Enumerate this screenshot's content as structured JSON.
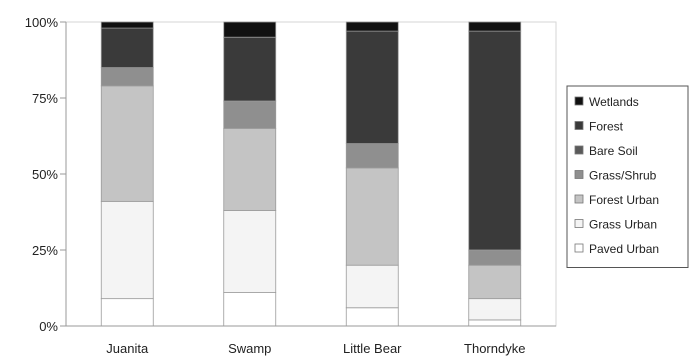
{
  "chart_data": {
    "type": "bar",
    "stacked": true,
    "percent": true,
    "categories": [
      "Juanita",
      "Swamp",
      "Little Bear",
      "Thorndyke"
    ],
    "ylim": [
      0,
      100
    ],
    "yticks": [
      "0%",
      "25%",
      "50%",
      "75%",
      "100%"
    ],
    "grid": false,
    "legend_position": "right",
    "series": [
      {
        "name": "Paved Urban",
        "color": "#ffffff",
        "values": [
          9,
          11,
          6,
          2
        ]
      },
      {
        "name": "Grass Urban",
        "color": "#f4f4f4",
        "values": [
          32,
          27,
          14,
          7
        ]
      },
      {
        "name": "Forest Urban",
        "color": "#c4c4c4",
        "values": [
          38,
          27,
          32,
          11
        ]
      },
      {
        "name": "Grass/Shrub",
        "color": "#8f8f8f",
        "values": [
          6,
          9,
          8,
          5
        ]
      },
      {
        "name": "Bare Soil",
        "color": "#5a5a5a",
        "values": [
          0,
          0,
          0,
          0
        ]
      },
      {
        "name": "Forest",
        "color": "#3a3a3a",
        "values": [
          13,
          21,
          37,
          72
        ]
      },
      {
        "name": "Wetlands",
        "color": "#111111",
        "values": [
          2,
          5,
          3,
          3
        ]
      }
    ],
    "legend_order": [
      "Wetlands",
      "Forest",
      "Bare Soil",
      "Grass/Shrub",
      "Forest Urban",
      "Grass Urban",
      "Paved Urban"
    ]
  }
}
